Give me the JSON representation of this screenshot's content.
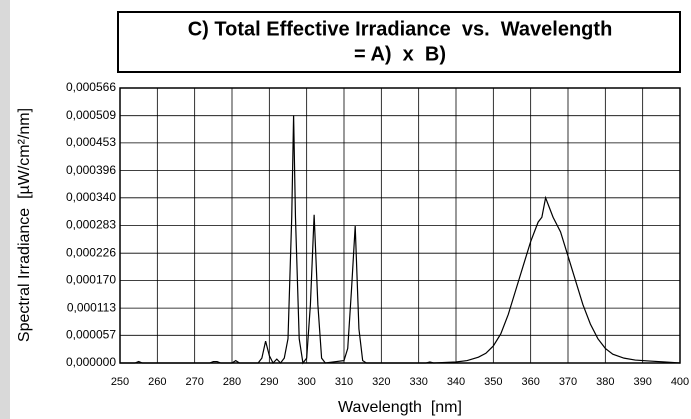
{
  "chart_data": {
    "type": "line",
    "title": [
      "C) Total Effective Irradiance  vs.  Wavelength",
      "= A)  x  B)"
    ],
    "x_label": "Wavelength  [nm]",
    "y_label": "Spectral Irradiance  [µW/cm²/nm]",
    "xlim": [
      250,
      400
    ],
    "xticks": [
      250,
      260,
      270,
      280,
      290,
      300,
      310,
      320,
      330,
      340,
      350,
      360,
      370,
      380,
      390,
      400
    ],
    "ylim": [
      0,
      0.000566
    ],
    "yticks": [
      {
        "value": 0,
        "label": "0,000000"
      },
      {
        "value": 5.7e-05,
        "label": "0,000057"
      },
      {
        "value": 0.000113,
        "label": "0,000113"
      },
      {
        "value": 0.00017,
        "label": "0,000170"
      },
      {
        "value": 0.000226,
        "label": "0,000226"
      },
      {
        "value": 0.000283,
        "label": "0,000283"
      },
      {
        "value": 0.00034,
        "label": "0,000340"
      },
      {
        "value": 0.000396,
        "label": "0,000396"
      },
      {
        "value": 0.000453,
        "label": "0,000453"
      },
      {
        "value": 0.000509,
        "label": "0,000509"
      },
      {
        "value": 0.000566,
        "label": "0,000566"
      }
    ],
    "grid": true,
    "color": "#000000",
    "x": [
      250,
      254,
      255,
      256,
      274,
      275,
      276,
      277,
      280,
      281,
      282,
      287,
      288,
      289,
      290,
      291,
      292,
      293,
      294,
      295,
      296,
      296.5,
      297,
      298,
      299,
      300,
      301,
      302,
      303,
      304,
      305,
      310,
      311,
      312,
      313,
      314,
      315,
      316,
      332,
      333,
      334,
      340,
      343,
      346,
      348,
      350,
      352,
      354,
      356,
      358,
      360,
      362,
      363,
      364,
      365,
      366,
      368,
      370,
      372,
      374,
      376,
      378,
      380,
      382,
      385,
      388,
      392,
      396,
      400
    ],
    "values": [
      0,
      0,
      3e-06,
      0,
      0,
      3e-06,
      3e-06,
      0,
      0,
      5e-06,
      0,
      0,
      1e-05,
      4.5e-05,
      1.5e-05,
      0,
      8e-06,
      0,
      1e-05,
      5e-05,
      0.0003,
      0.00051,
      0.0003,
      5e-05,
      0,
      1e-05,
      0.00012,
      0.000305,
      0.00012,
      1e-05,
      0,
      5e-06,
      3e-05,
      0.00015,
      0.000282,
      7e-05,
      5e-06,
      0,
      0,
      2e-06,
      0,
      2e-06,
      5e-06,
      1.2e-05,
      2e-05,
      3.5e-05,
      6e-05,
      0.0001,
      0.00015,
      0.0002,
      0.00025,
      0.00029,
      0.0003,
      0.00034,
      0.00032,
      0.0003,
      0.00027,
      0.00022,
      0.00017,
      0.00012,
      8e-05,
      5e-05,
      3e-05,
      1.8e-05,
      1e-05,
      6e-06,
      4e-06,
      2e-06,
      0
    ]
  }
}
